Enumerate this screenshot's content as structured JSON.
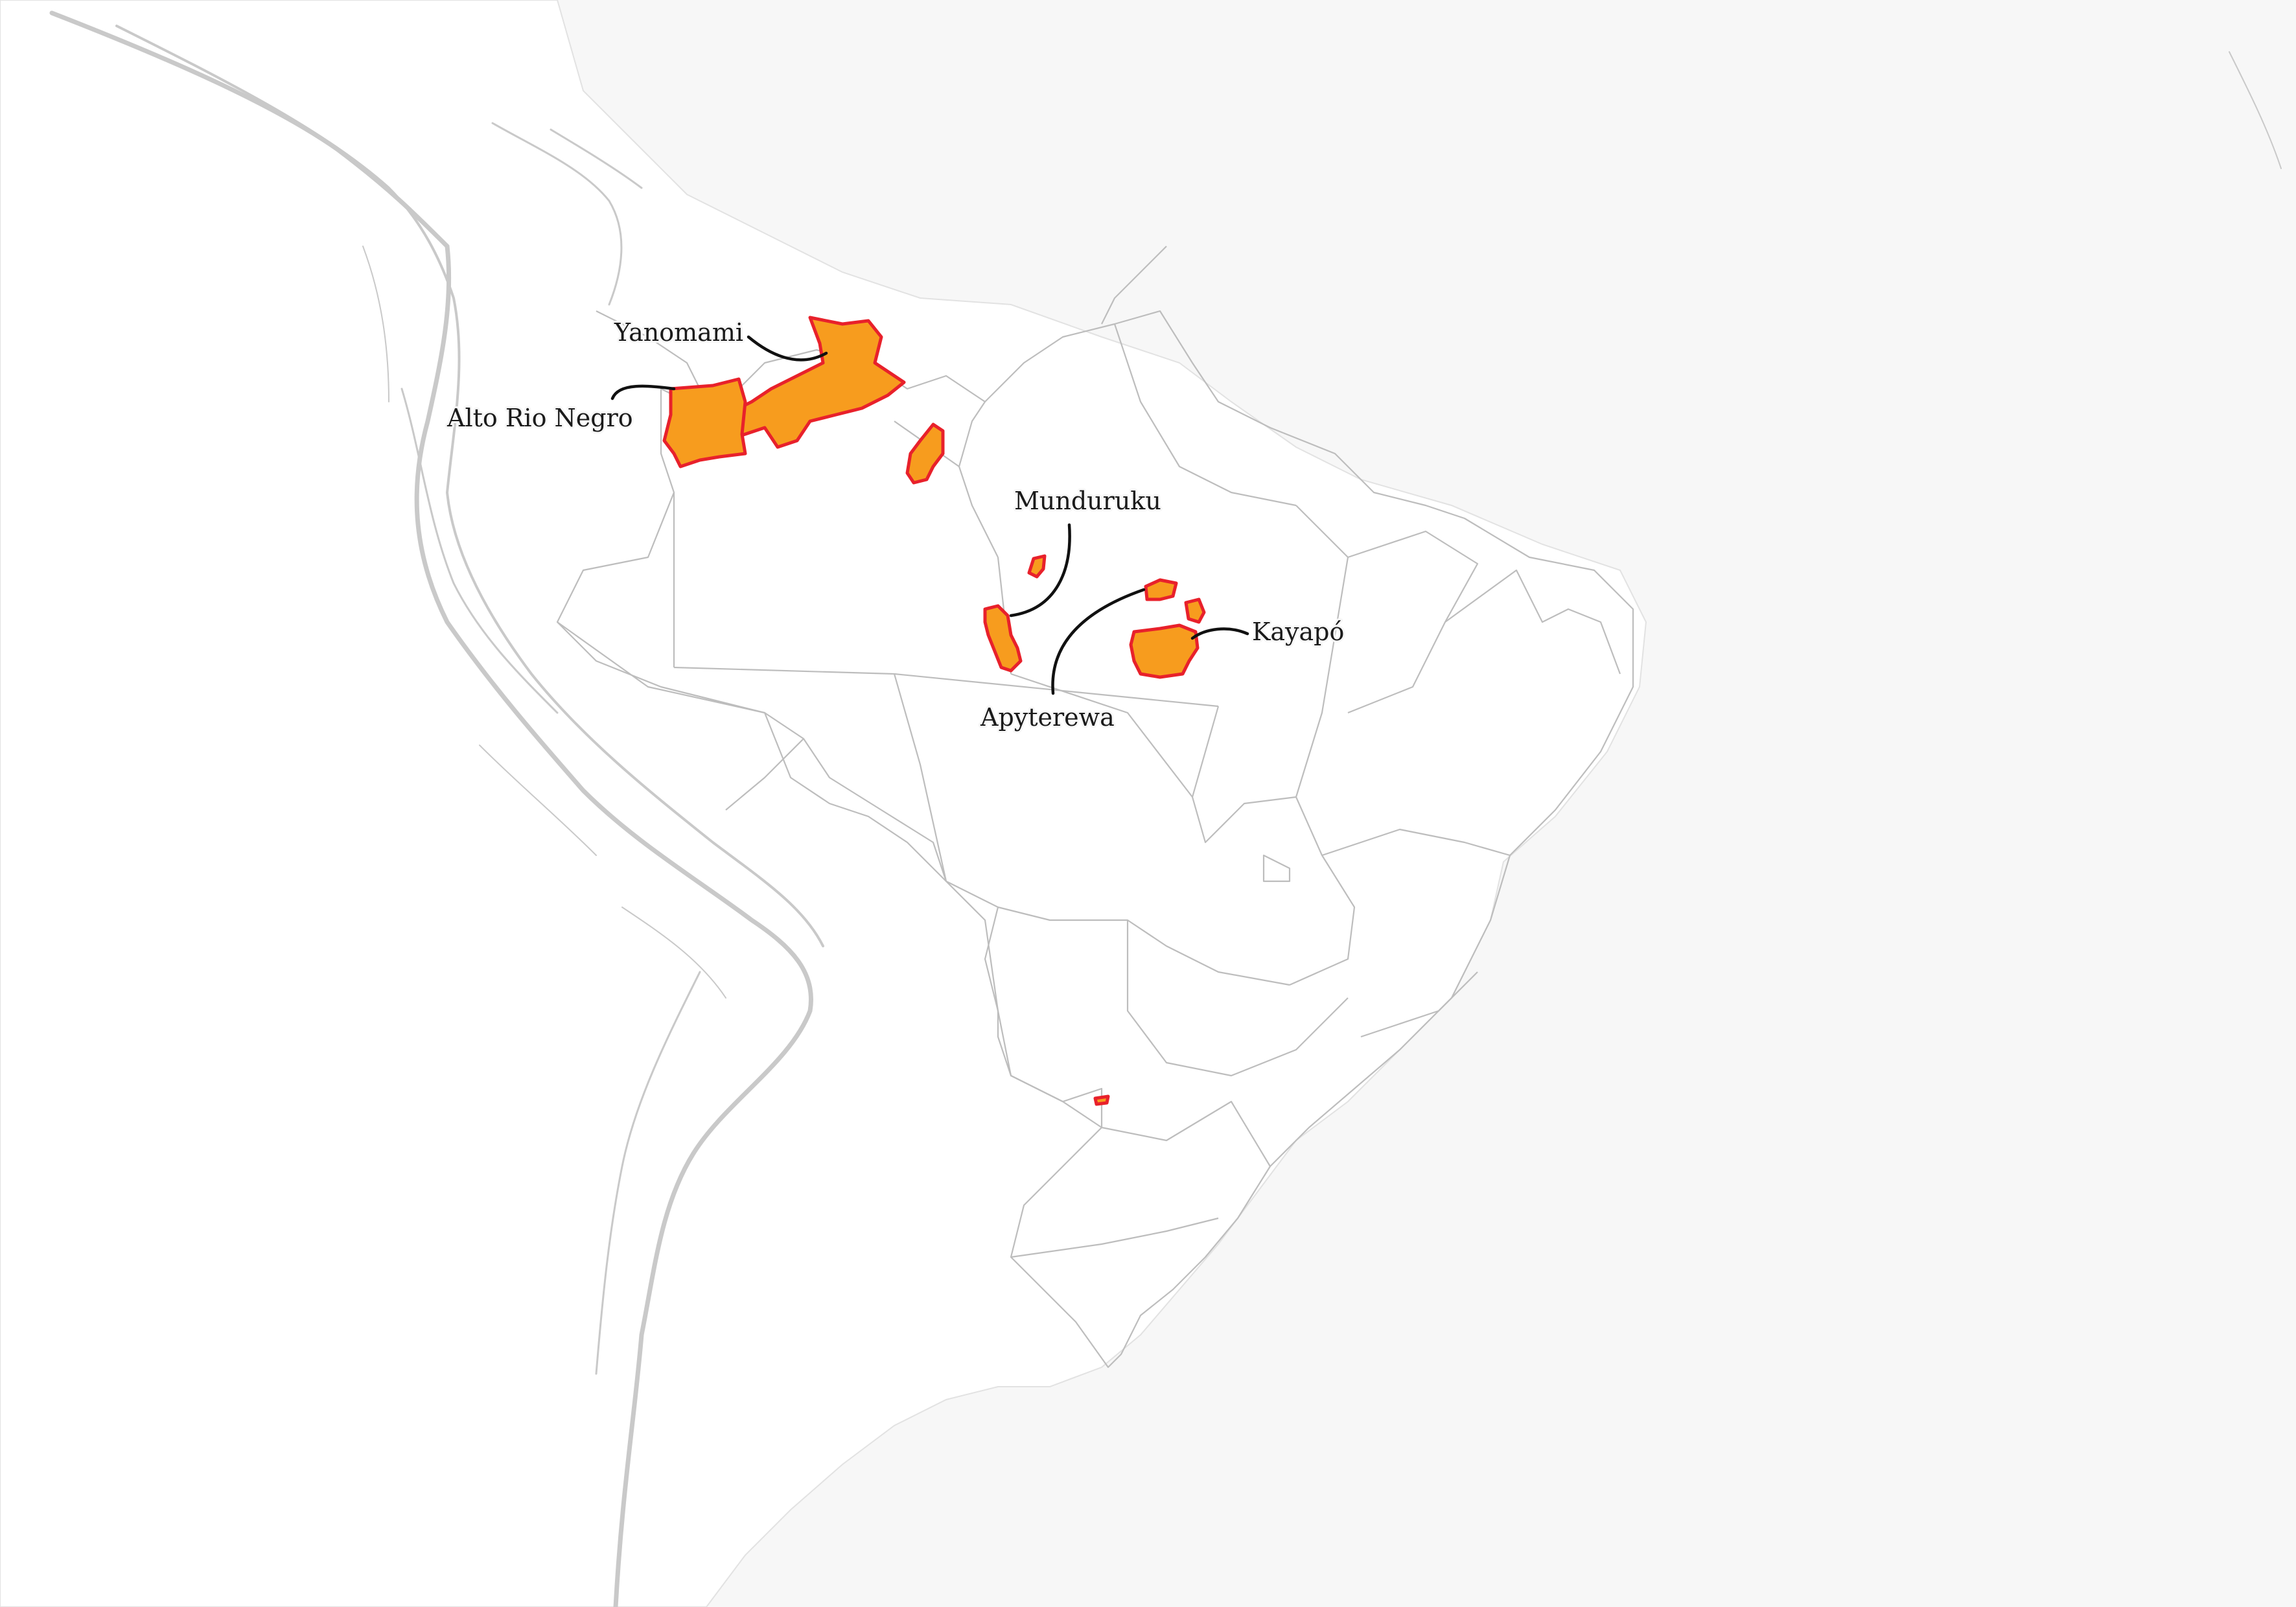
{
  "colors": {
    "background": "#f7f7f7",
    "land": "#ffffff",
    "border": "#bdbdbd",
    "relief": "#c9c9c9",
    "territory_fill": "#f79c1e",
    "territory_edge": "#e8212b",
    "label_text": "#1a1a1a",
    "leader_line": "#111111"
  },
  "labels": {
    "yanomami": "Yanomami",
    "alto_rio_negro": "Alto Rio Negro",
    "munduruku": "Munduruku",
    "kayapo": "Kayapó",
    "apyterewa": "Apyterewa"
  }
}
